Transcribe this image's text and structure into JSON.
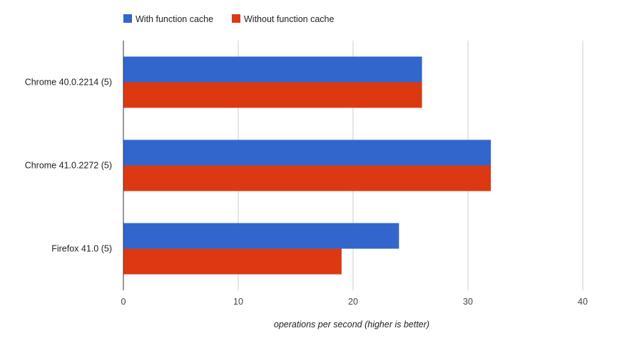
{
  "chart_data": {
    "type": "bar",
    "orientation": "horizontal",
    "categories": [
      "Chrome 40.0.2214 (5)",
      "Chrome 41.0.2272 (5)",
      "Firefox 41.0 (5)"
    ],
    "series": [
      {
        "name": "With function cache",
        "values": [
          26,
          32,
          24
        ],
        "color": "#3366cc"
      },
      {
        "name": "Without function cache",
        "values": [
          26,
          32,
          19
        ],
        "color": "#dc3912"
      }
    ],
    "xlabel": "operations per second (higher is better)",
    "ylabel": "",
    "xlim": [
      0,
      40
    ],
    "xticks": [
      0,
      10,
      20,
      30,
      40
    ],
    "grid": true,
    "legend_position": "top-left"
  }
}
